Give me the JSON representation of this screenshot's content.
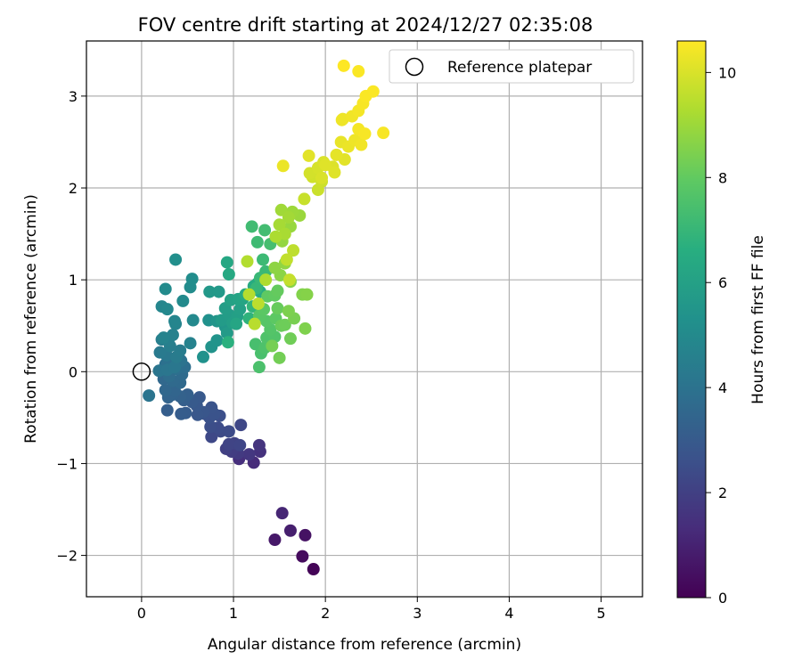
{
  "chart_data": {
    "type": "scatter",
    "title": "FOV centre drift starting at 2024/12/27 02:35:08",
    "xlabel": "Angular distance from reference (arcmin)",
    "ylabel": "Rotation from reference (arcmin)",
    "xlim": [
      -0.6,
      5.45
    ],
    "ylim": [
      -2.45,
      3.6
    ],
    "x_ticks": [
      0,
      1,
      2,
      3,
      4,
      5
    ],
    "y_ticks": [
      -2,
      -1,
      0,
      1,
      2,
      3
    ],
    "x_tick_labels": [
      "0",
      "1",
      "2",
      "3",
      "4",
      "5"
    ],
    "y_tick_labels": [
      "−2",
      "−1",
      "0",
      "1",
      "2",
      "3"
    ],
    "grid": true,
    "legend": {
      "position": "top-right",
      "entries": [
        "Reference platepar"
      ]
    },
    "reference": {
      "x": 0,
      "y": 0,
      "label": "Reference platepar"
    },
    "colorbar": {
      "label": "Hours from first FF file",
      "range": [
        0,
        10.6
      ],
      "ticks": [
        0,
        2,
        4,
        6,
        8,
        10
      ],
      "tick_labels": [
        "0",
        "2",
        "4",
        "6",
        "8",
        "10"
      ],
      "colormap": "viridis"
    },
    "points": [
      [
        1.87,
        -2.15,
        0.1
      ],
      [
        1.75,
        -2.01,
        0.3
      ],
      [
        1.78,
        -1.78,
        0.5
      ],
      [
        1.45,
        -1.83,
        0.7
      ],
      [
        1.62,
        -1.73,
        0.9
      ],
      [
        1.53,
        -1.54,
        1.1
      ],
      [
        1.22,
        -0.99,
        1.3
      ],
      [
        1.06,
        -0.95,
        1.4
      ],
      [
        1.29,
        -0.87,
        1.5
      ],
      [
        1.28,
        -0.8,
        1.6
      ],
      [
        1.17,
        -0.9,
        1.7
      ],
      [
        1.05,
        -0.89,
        1.8
      ],
      [
        0.98,
        -0.87,
        1.9
      ],
      [
        0.92,
        -0.84,
        2.0
      ],
      [
        1.01,
        -0.78,
        2.1
      ],
      [
        0.95,
        -0.79,
        2.15
      ],
      [
        1.07,
        -0.8,
        2.2
      ],
      [
        1.08,
        -0.58,
        2.25
      ],
      [
        0.76,
        -0.71,
        2.3
      ],
      [
        0.86,
        -0.65,
        2.35
      ],
      [
        0.95,
        -0.65,
        2.4
      ],
      [
        0.83,
        -0.61,
        2.45
      ],
      [
        0.75,
        -0.6,
        2.5
      ],
      [
        0.85,
        -0.48,
        2.55
      ],
      [
        0.74,
        -0.5,
        2.6
      ],
      [
        0.69,
        -0.46,
        2.65
      ],
      [
        0.79,
        -0.46,
        2.7
      ],
      [
        0.76,
        -0.39,
        2.75
      ],
      [
        0.67,
        -0.44,
        2.8
      ],
      [
        0.61,
        -0.47,
        2.85
      ],
      [
        0.6,
        -0.37,
        2.9
      ],
      [
        0.63,
        -0.28,
        2.95
      ],
      [
        0.55,
        -0.33,
        3.0
      ],
      [
        0.48,
        -0.45,
        3.05
      ],
      [
        0.43,
        -0.46,
        3.1
      ],
      [
        0.28,
        -0.42,
        3.15
      ],
      [
        0.46,
        -0.31,
        3.2
      ],
      [
        0.5,
        -0.25,
        3.25
      ],
      [
        0.42,
        -0.27,
        3.3
      ],
      [
        0.34,
        -0.25,
        3.35
      ],
      [
        0.29,
        -0.28,
        3.4
      ],
      [
        0.36,
        -0.21,
        3.45
      ],
      [
        0.26,
        -0.2,
        3.5
      ],
      [
        0.24,
        -0.08,
        3.55
      ],
      [
        0.42,
        -0.12,
        3.6
      ],
      [
        0.34,
        -0.1,
        3.65
      ],
      [
        0.44,
        -0.03,
        3.7
      ],
      [
        0.3,
        -0.05,
        3.75
      ],
      [
        0.47,
        0.05,
        3.8
      ],
      [
        0.38,
        0.03,
        3.85
      ],
      [
        0.26,
        0.08,
        3.9
      ],
      [
        0.32,
        0.1,
        3.95
      ],
      [
        0.43,
        0.12,
        4.0
      ],
      [
        0.08,
        -0.26,
        4.05
      ],
      [
        0.19,
        0.01,
        4.1
      ],
      [
        0.28,
        0.02,
        4.15
      ],
      [
        0.36,
        0.05,
        4.2
      ],
      [
        0.27,
        0.18,
        4.25
      ],
      [
        0.2,
        0.21,
        4.3
      ],
      [
        0.38,
        0.16,
        4.35
      ],
      [
        0.42,
        0.23,
        4.4
      ],
      [
        0.31,
        0.28,
        4.45
      ],
      [
        0.22,
        0.35,
        4.5
      ],
      [
        0.29,
        0.34,
        4.55
      ],
      [
        0.34,
        0.4,
        4.6
      ],
      [
        0.53,
        0.31,
        4.65
      ],
      [
        0.24,
        0.37,
        4.7
      ],
      [
        0.37,
        0.52,
        4.75
      ],
      [
        0.36,
        0.55,
        4.8
      ],
      [
        0.22,
        0.71,
        4.85
      ],
      [
        0.28,
        0.68,
        4.9
      ],
      [
        0.56,
        0.56,
        4.95
      ],
      [
        0.45,
        0.77,
        5.0
      ],
      [
        0.26,
        0.9,
        5.05
      ],
      [
        0.53,
        0.92,
        5.1
      ],
      [
        0.55,
        1.01,
        5.15
      ],
      [
        0.37,
        1.22,
        5.2
      ],
      [
        0.73,
        0.56,
        5.3
      ],
      [
        0.67,
        0.16,
        5.35
      ],
      [
        0.76,
        0.27,
        5.4
      ],
      [
        0.82,
        0.34,
        5.45
      ],
      [
        0.82,
        0.55,
        5.5
      ],
      [
        0.91,
        0.49,
        5.55
      ],
      [
        0.74,
        0.87,
        5.6
      ],
      [
        0.84,
        0.87,
        5.65
      ],
      [
        0.93,
        0.42,
        5.7
      ],
      [
        0.87,
        0.56,
        5.75
      ],
      [
        0.95,
        0.62,
        5.8
      ],
      [
        0.91,
        0.69,
        5.85
      ],
      [
        0.99,
        0.53,
        5.9
      ],
      [
        1.04,
        0.6,
        5.95
      ],
      [
        1.07,
        0.68,
        6.0
      ],
      [
        0.97,
        0.78,
        6.05
      ],
      [
        1.05,
        0.79,
        6.1
      ],
      [
        1.1,
        0.79,
        6.15
      ],
      [
        1.03,
        0.52,
        6.2
      ],
      [
        0.93,
        1.19,
        6.3
      ],
      [
        0.95,
        1.06,
        6.35
      ],
      [
        1.13,
        0.84,
        6.4
      ],
      [
        1.22,
        0.93,
        6.45
      ],
      [
        1.26,
        0.96,
        6.5
      ],
      [
        1.29,
        0.87,
        6.55
      ],
      [
        0.94,
        0.32,
        6.7
      ],
      [
        1.17,
        0.58,
        6.8
      ],
      [
        1.21,
        0.71,
        6.9
      ],
      [
        1.25,
        0.91,
        7.0
      ],
      [
        1.29,
        1.02,
        7.05
      ],
      [
        1.35,
        1.09,
        7.1
      ],
      [
        1.32,
        1.22,
        7.15
      ],
      [
        1.26,
        1.41,
        7.2
      ],
      [
        1.2,
        1.58,
        7.25
      ],
      [
        1.34,
        1.54,
        7.3
      ],
      [
        1.4,
        1.39,
        7.35
      ],
      [
        1.24,
        0.3,
        7.4
      ],
      [
        1.3,
        0.2,
        7.45
      ],
      [
        1.28,
        0.05,
        7.5
      ],
      [
        1.34,
        0.26,
        7.55
      ],
      [
        1.36,
        0.37,
        7.6
      ],
      [
        1.45,
        0.38,
        7.65
      ],
      [
        1.4,
        0.46,
        7.7
      ],
      [
        1.36,
        0.55,
        7.75
      ],
      [
        1.28,
        0.61,
        7.8
      ],
      [
        1.33,
        0.68,
        7.85
      ],
      [
        1.46,
        0.58,
        7.9
      ],
      [
        1.37,
        0.82,
        7.95
      ],
      [
        1.45,
        0.83,
        8.0
      ],
      [
        1.48,
        0.88,
        8.05
      ],
      [
        1.48,
        0.69,
        8.1
      ],
      [
        1.52,
        0.5,
        8.15
      ],
      [
        1.56,
        0.51,
        8.2
      ],
      [
        1.62,
        0.36,
        8.25
      ],
      [
        1.5,
        0.15,
        8.3
      ],
      [
        1.42,
        0.28,
        8.35
      ],
      [
        1.66,
        0.58,
        8.4
      ],
      [
        1.6,
        0.66,
        8.45
      ],
      [
        1.78,
        0.47,
        8.5
      ],
      [
        1.75,
        0.84,
        8.55
      ],
      [
        1.8,
        0.84,
        8.6
      ],
      [
        1.62,
        0.98,
        8.65
      ],
      [
        1.51,
        1.05,
        8.7
      ],
      [
        1.45,
        1.13,
        8.75
      ],
      [
        1.56,
        1.18,
        8.8
      ],
      [
        1.53,
        1.42,
        8.85
      ],
      [
        1.62,
        1.58,
        8.9
      ],
      [
        1.72,
        1.7,
        8.95
      ],
      [
        1.64,
        1.74,
        9.0
      ],
      [
        1.52,
        1.76,
        9.05
      ],
      [
        1.6,
        1.68,
        9.1
      ],
      [
        1.5,
        1.6,
        9.15
      ],
      [
        1.56,
        1.5,
        9.2
      ],
      [
        1.46,
        1.47,
        9.25
      ],
      [
        1.35,
        1.0,
        9.3
      ],
      [
        1.15,
        1.2,
        9.35
      ],
      [
        1.17,
        0.84,
        9.4
      ],
      [
        1.23,
        0.52,
        9.45
      ],
      [
        1.27,
        0.74,
        9.5
      ],
      [
        1.65,
        1.32,
        9.55
      ],
      [
        1.58,
        1.22,
        9.6
      ],
      [
        1.61,
        1.0,
        9.65
      ],
      [
        1.77,
        1.88,
        9.7
      ],
      [
        1.92,
        1.98,
        9.75
      ],
      [
        1.96,
        2.07,
        9.8
      ],
      [
        1.86,
        2.12,
        9.85
      ],
      [
        1.83,
        2.16,
        9.9
      ],
      [
        1.92,
        2.22,
        9.95
      ],
      [
        1.98,
        2.28,
        10.0
      ],
      [
        2.08,
        2.23,
        10.05
      ],
      [
        2.1,
        2.17,
        10.1
      ],
      [
        2.21,
        2.31,
        10.15
      ],
      [
        2.12,
        2.36,
        10.2
      ],
      [
        2.17,
        2.5,
        10.25
      ],
      [
        2.25,
        2.45,
        10.3
      ],
      [
        2.32,
        2.52,
        10.35
      ],
      [
        2.39,
        2.47,
        10.4
      ],
      [
        2.36,
        2.64,
        10.45
      ],
      [
        2.43,
        2.59,
        10.5
      ],
      [
        1.54,
        2.24,
        10.3
      ],
      [
        2.18,
        2.74,
        10.35
      ],
      [
        2.29,
        2.78,
        10.4
      ],
      [
        2.36,
        2.84,
        10.45
      ],
      [
        2.41,
        2.92,
        10.5
      ],
      [
        2.44,
        3.0,
        10.55
      ],
      [
        2.52,
        3.05,
        10.55
      ],
      [
        2.63,
        2.6,
        10.5
      ],
      [
        2.36,
        3.27,
        10.55
      ],
      [
        2.2,
        3.33,
        10.6
      ],
      [
        1.96,
        2.11,
        10.0
      ],
      [
        2.0,
        2.25,
        10.1
      ],
      [
        1.82,
        2.35,
        10.15
      ],
      [
        2.19,
        2.75,
        10.3
      ]
    ]
  }
}
